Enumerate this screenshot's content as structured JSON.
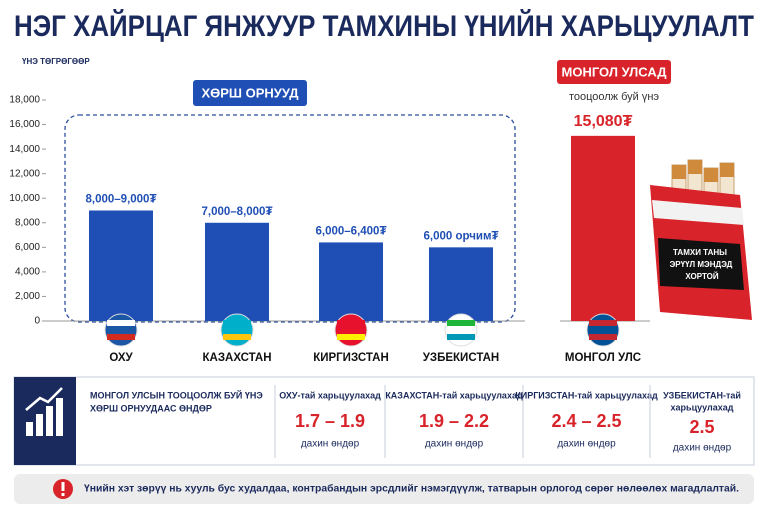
{
  "header": {
    "title": "НЭГ ХАЙРЦАГ ЯНЖУУР ТАМХИНЫ ҮНИЙН ХАРЬЦУУЛАЛТ"
  },
  "chart_data": {
    "type": "bar",
    "y_label": "ҮНЭ ТӨГРӨГӨӨР",
    "categories": [
      "ОХУ",
      "КАЗАХСТАН",
      "КИРГИЗСТАН",
      "УЗБЕКИСТАН",
      "МОНГОЛ УЛС"
    ],
    "values": [
      9000,
      8000,
      6400,
      6000,
      15080
    ],
    "value_labels": [
      "8,000–9,000₮",
      "7,000–8,000₮",
      "6,000–6,400₮",
      "6,000 орчим₮",
      "15,080₮"
    ],
    "colors": [
      "#1f4fb5",
      "#1f4fb5",
      "#1f4fb5",
      "#1f4fb5",
      "#d9232a"
    ],
    "ylim": [
      0,
      18000
    ],
    "yticks": [
      0,
      {
        "value": 2000,
        "label": "2,000"
      },
      {
        "value": 4000,
        "label": "4,000"
      },
      {
        "value": 6000,
        "label": "6,000"
      },
      {
        "value": 8000,
        "label": "8,000"
      },
      {
        "value": 10000,
        "label": "10,000"
      },
      {
        "value": 12000,
        "label": "12,000"
      },
      {
        "value": 14000,
        "label": "14,000"
      },
      {
        "value": 16000,
        "label": "16,000"
      },
      {
        "value": 18000,
        "label": "18,000"
      }
    ],
    "annotations": {
      "neighbors": "ХӨРШ ОРНУУД",
      "mongolia": "МОНГОЛ УЛСАД",
      "mongolia_sub": "тооцоолж буй үнэ"
    },
    "pack_label": [
      "ТАМХИ ТАНЫ",
      "ЭРҮҮЛ МЭНДЭД",
      "ХОРТОЙ"
    ]
  },
  "summary": {
    "text": [
      "МОНГОЛ УЛСЫН ТООЦООЛЖ БУЙ ҮНЭ",
      "ХӨРШ ОРНУУДААС ӨНДӨР"
    ],
    "comparisons": [
      {
        "label": [
          "ОХУ-тай харьцуулахад"
        ],
        "ratio": "1.7 – 1.9",
        "note": "дахин өндөр"
      },
      {
        "label": [
          "КАЗАХСТАН-тай харьцуулахад"
        ],
        "ratio": "1.9 – 2.2",
        "note": "дахин өндөр"
      },
      {
        "label": [
          "КИРГИЗСТАН-тай харьцуулахад"
        ],
        "ratio": "2.4 – 2.5",
        "note": "дахин өндөр"
      },
      {
        "label": [
          "УЗБЕКИСТАН-тай",
          "харьцуулахад"
        ],
        "ratio": "2.5",
        "note": "дахин өндөр"
      }
    ]
  },
  "footer": {
    "text": "Үнийн хэт зөрүү нь хууль бус худалдаа, контрабандын эрсдлийг нэмэгдүүлж, татварын орлогод сөрөг нөлөөлөх магадлалтай."
  }
}
